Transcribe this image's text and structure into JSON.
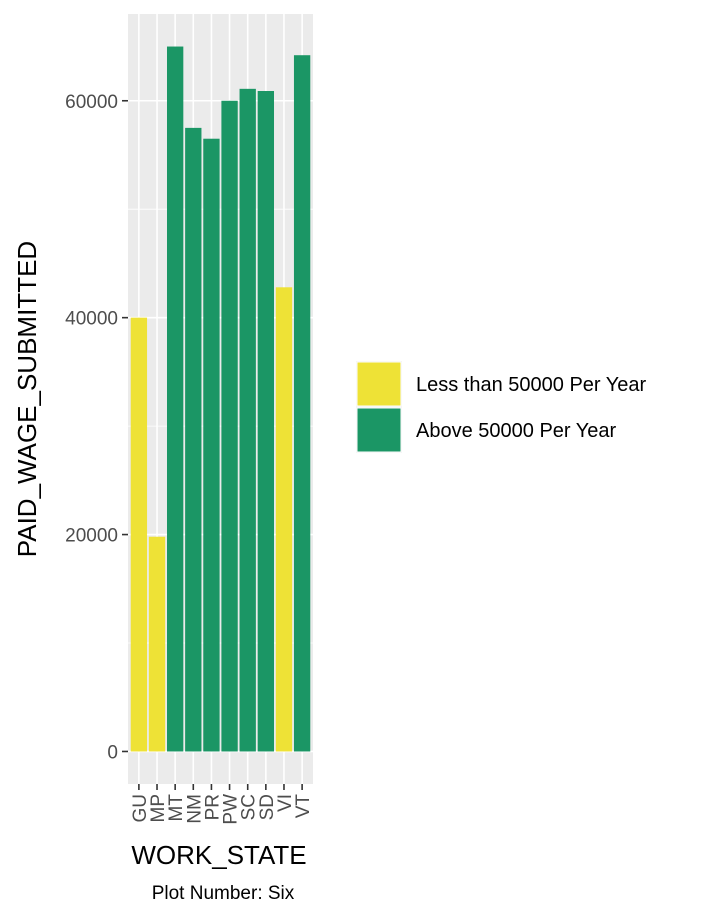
{
  "chart_data": {
    "type": "bar",
    "categories": [
      "GU",
      "MP",
      "MT",
      "NM",
      "PR",
      "PW",
      "SC",
      "SD",
      "VI",
      "VT"
    ],
    "values": [
      40000,
      19800,
      65000,
      57500,
      56500,
      60000,
      61100,
      60900,
      42800,
      64200
    ],
    "groups": [
      "Less than 50000 Per Year",
      "Less than 50000 Per Year",
      "Above 50000 Per Year",
      "Above 50000 Per Year",
      "Above 50000 Per Year",
      "Above 50000 Per Year",
      "Above 50000 Per Year",
      "Above 50000 Per Year",
      "Less than 50000 Per Year",
      "Above 50000 Per Year"
    ],
    "xlabel": "WORK_STATE",
    "ylabel": "PAID_WAGE_SUBMITTED",
    "caption": "Plot Number: Six",
    "ylim": [
      -3000,
      68000
    ],
    "yticks": [
      0,
      20000,
      40000,
      60000
    ],
    "ytick_labels": [
      "0",
      "20000",
      "40000",
      "60000"
    ],
    "legend": {
      "position": "right",
      "items": [
        {
          "label": "Less than 50000 Per Year",
          "color": "#EEE236"
        },
        {
          "label": "Above 50000 Per Year",
          "color": "#1B9665"
        }
      ]
    },
    "panel_background": "#EBEBEB",
    "grid": true
  }
}
